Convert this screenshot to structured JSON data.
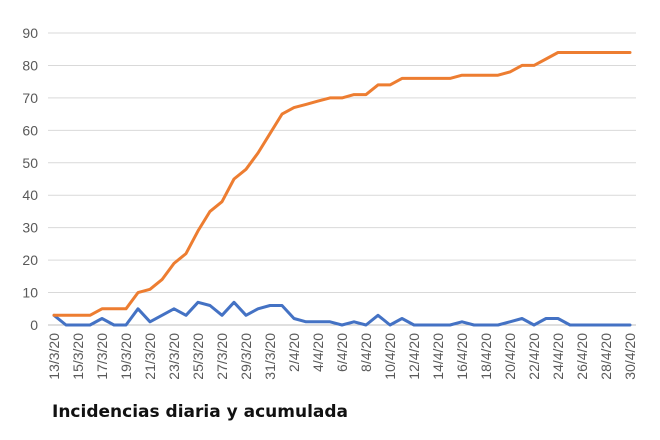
{
  "caption": "Incidencias diaria y acumulada",
  "chart_data": {
    "type": "line",
    "title": "",
    "xlabel": "",
    "ylabel": "",
    "ylim": [
      0,
      90
    ],
    "yticks": [
      0,
      10,
      20,
      30,
      40,
      50,
      60,
      70,
      80,
      90
    ],
    "grid": true,
    "legend": "none",
    "x": [
      "13/3/20",
      "14/3/20",
      "15/3/20",
      "16/3/20",
      "17/3/20",
      "18/3/20",
      "19/3/20",
      "20/3/20",
      "21/3/20",
      "22/3/20",
      "23/3/20",
      "24/3/20",
      "25/3/20",
      "26/3/20",
      "27/3/20",
      "28/3/20",
      "29/3/20",
      "30/3/20",
      "31/3/20",
      "1/4/20",
      "2/4/20",
      "3/4/20",
      "4/4/20",
      "5/4/20",
      "6/4/20",
      "7/4/20",
      "8/4/20",
      "9/4/20",
      "10/4/20",
      "11/4/20",
      "12/4/20",
      "13/4/20",
      "14/4/20",
      "15/4/20",
      "16/4/20",
      "17/4/20",
      "18/4/20",
      "19/4/20",
      "20/4/20",
      "21/4/20",
      "22/4/20",
      "23/4/20",
      "24/4/20",
      "25/4/20",
      "26/4/20",
      "27/4/20",
      "28/4/20",
      "29/4/20",
      "30/4/20"
    ],
    "x_tick_labels": [
      "13/3/20",
      "15/3/20",
      "17/3/20",
      "19/3/20",
      "21/3/20",
      "23/3/20",
      "25/3/20",
      "27/3/20",
      "29/3/20",
      "31/3/20",
      "2/4/20",
      "4/4/20",
      "6/4/20",
      "8/4/20",
      "10/4/20",
      "12/4/20",
      "14/4/20",
      "16/4/20",
      "18/4/20",
      "20/4/20",
      "22/4/20",
      "24/4/20",
      "26/4/20",
      "28/4/20",
      "30/4/20"
    ],
    "series": [
      {
        "color": "#4472C4",
        "values": [
          3,
          0,
          0,
          0,
          2,
          0,
          0,
          5,
          1,
          3,
          5,
          3,
          7,
          6,
          3,
          7,
          3,
          5,
          6,
          6,
          2,
          1,
          1,
          1,
          0,
          1,
          0,
          3,
          0,
          2,
          0,
          0,
          0,
          0,
          1,
          0,
          0,
          0,
          1,
          2,
          0,
          2,
          2,
          0,
          0,
          0,
          0,
          0,
          0
        ]
      },
      {
        "color": "#ED7D31",
        "values": [
          3,
          3,
          3,
          3,
          5,
          5,
          5,
          10,
          11,
          14,
          19,
          22,
          29,
          35,
          38,
          45,
          48,
          53,
          59,
          65,
          67,
          68,
          69,
          70,
          70,
          71,
          71,
          74,
          74,
          76,
          76,
          76,
          76,
          76,
          77,
          77,
          77,
          77,
          78,
          80,
          80,
          82,
          84,
          84,
          84,
          84,
          84,
          84,
          84
        ]
      }
    ]
  }
}
